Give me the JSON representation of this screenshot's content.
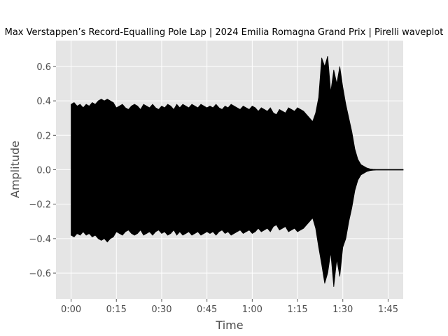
{
  "chart_data": {
    "type": "area",
    "title": "Max Verstappen’s Record-Equalling Pole Lap | 2024 Emilia Romagna Grand Prix | Pirelli waveplot",
    "xlabel": "Time",
    "ylabel": "Amplitude",
    "xlim": [
      -5,
      110
    ],
    "ylim": [
      -0.75,
      0.75
    ],
    "x_ticks": [
      {
        "value": 0,
        "label": "0:00"
      },
      {
        "value": 15,
        "label": "0:15"
      },
      {
        "value": 30,
        "label": "0:30"
      },
      {
        "value": 45,
        "label": "0:45"
      },
      {
        "value": 60,
        "label": "1:00"
      },
      {
        "value": 75,
        "label": "1:15"
      },
      {
        "value": 90,
        "label": "1:30"
      },
      {
        "value": 105,
        "label": "1:45"
      }
    ],
    "y_ticks": [
      {
        "value": -0.6,
        "label": "−0.6"
      },
      {
        "value": -0.4,
        "label": "−0.4"
      },
      {
        "value": -0.2,
        "label": "−0.2"
      },
      {
        "value": 0.0,
        "label": "0.0"
      },
      {
        "value": 0.2,
        "label": "0.2"
      },
      {
        "value": 0.4,
        "label": "0.4"
      },
      {
        "value": 0.6,
        "label": "0.6"
      }
    ],
    "grid": true,
    "style": "ggplot",
    "series": [
      {
        "color": "#000000",
        "x": [
          0,
          1,
          2,
          3,
          4,
          5,
          6,
          7,
          8,
          9,
          10,
          11,
          12,
          13,
          14,
          15,
          16,
          17,
          18,
          19,
          20,
          21,
          22,
          23,
          24,
          25,
          26,
          27,
          28,
          29,
          30,
          31,
          32,
          33,
          34,
          35,
          36,
          37,
          38,
          39,
          40,
          41,
          42,
          43,
          44,
          45,
          46,
          47,
          48,
          49,
          50,
          51,
          52,
          53,
          54,
          55,
          56,
          57,
          58,
          59,
          60,
          61,
          62,
          63,
          64,
          65,
          66,
          67,
          68,
          69,
          70,
          71,
          72,
          73,
          74,
          75,
          76,
          77,
          78,
          79,
          80,
          81,
          82,
          83,
          84,
          85,
          86,
          87,
          88,
          89,
          90,
          91,
          92,
          93,
          94,
          95,
          96,
          97,
          98,
          99,
          100,
          101,
          102,
          103,
          104,
          105,
          106,
          107,
          108,
          109,
          110
        ],
        "upper": [
          0.38,
          0.39,
          0.37,
          0.38,
          0.36,
          0.38,
          0.37,
          0.39,
          0.38,
          0.4,
          0.41,
          0.4,
          0.41,
          0.4,
          0.39,
          0.36,
          0.37,
          0.38,
          0.36,
          0.35,
          0.37,
          0.38,
          0.37,
          0.35,
          0.38,
          0.37,
          0.36,
          0.38,
          0.36,
          0.35,
          0.37,
          0.36,
          0.38,
          0.37,
          0.35,
          0.38,
          0.36,
          0.38,
          0.37,
          0.36,
          0.38,
          0.37,
          0.36,
          0.38,
          0.37,
          0.36,
          0.37,
          0.36,
          0.38,
          0.36,
          0.35,
          0.37,
          0.36,
          0.38,
          0.37,
          0.36,
          0.35,
          0.37,
          0.36,
          0.35,
          0.37,
          0.36,
          0.34,
          0.36,
          0.35,
          0.34,
          0.36,
          0.33,
          0.32,
          0.35,
          0.34,
          0.33,
          0.36,
          0.35,
          0.34,
          0.36,
          0.35,
          0.34,
          0.32,
          0.3,
          0.28,
          0.33,
          0.42,
          0.65,
          0.6,
          0.66,
          0.45,
          0.58,
          0.5,
          0.6,
          0.48,
          0.38,
          0.3,
          0.22,
          0.12,
          0.06,
          0.03,
          0.02,
          0.01,
          0.005,
          0.003,
          0.002,
          0.002,
          0.002,
          0.002,
          0.002,
          0.002,
          0.002,
          0.002,
          0.002,
          0.002
        ],
        "lower": [
          -0.38,
          -0.39,
          -0.37,
          -0.38,
          -0.36,
          -0.38,
          -0.37,
          -0.39,
          -0.38,
          -0.4,
          -0.41,
          -0.4,
          -0.42,
          -0.4,
          -0.39,
          -0.36,
          -0.37,
          -0.38,
          -0.36,
          -0.35,
          -0.37,
          -0.38,
          -0.37,
          -0.35,
          -0.38,
          -0.37,
          -0.36,
          -0.38,
          -0.36,
          -0.35,
          -0.37,
          -0.36,
          -0.38,
          -0.37,
          -0.35,
          -0.38,
          -0.36,
          -0.38,
          -0.37,
          -0.36,
          -0.38,
          -0.37,
          -0.36,
          -0.38,
          -0.37,
          -0.36,
          -0.37,
          -0.36,
          -0.38,
          -0.36,
          -0.35,
          -0.37,
          -0.36,
          -0.38,
          -0.37,
          -0.36,
          -0.35,
          -0.37,
          -0.36,
          -0.35,
          -0.37,
          -0.36,
          -0.34,
          -0.36,
          -0.35,
          -0.34,
          -0.36,
          -0.33,
          -0.32,
          -0.35,
          -0.34,
          -0.33,
          -0.36,
          -0.35,
          -0.34,
          -0.36,
          -0.35,
          -0.34,
          -0.32,
          -0.3,
          -0.28,
          -0.34,
          -0.45,
          -0.55,
          -0.66,
          -0.6,
          -0.48,
          -0.68,
          -0.52,
          -0.62,
          -0.45,
          -0.4,
          -0.3,
          -0.22,
          -0.12,
          -0.06,
          -0.03,
          -0.02,
          -0.01,
          -0.005,
          -0.003,
          -0.002,
          -0.002,
          -0.002,
          -0.002,
          -0.002,
          -0.002,
          -0.002,
          -0.002,
          -0.002,
          -0.002
        ]
      }
    ]
  }
}
